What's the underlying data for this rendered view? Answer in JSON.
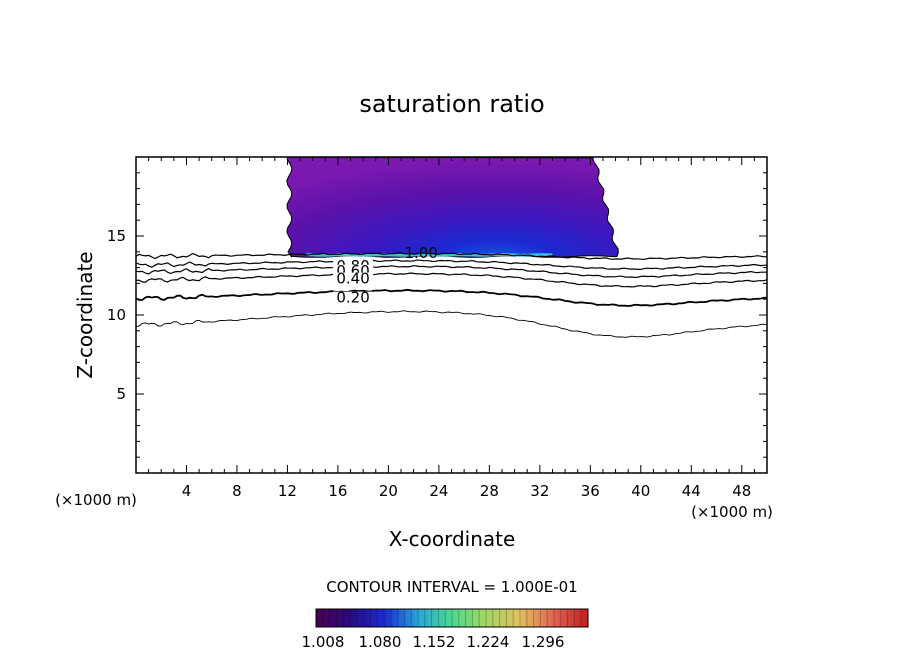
{
  "chart_data": {
    "type": "contour",
    "title": "saturation ratio",
    "xlabel": "X-coordinate",
    "ylabel": "Z-coordinate",
    "x_unit": "(×1000 m)",
    "x_unit_right": "(×1000 m)",
    "xlim": [
      0,
      50
    ],
    "ylim": [
      0,
      20
    ],
    "x_ticks": [
      4,
      8,
      12,
      16,
      20,
      24,
      28,
      32,
      36,
      40,
      44,
      48
    ],
    "y_ticks": [
      5,
      10,
      15
    ],
    "contour_interval_text": "CONTOUR INTERVAL = 1.000E-01",
    "contour_labels": [
      "1.00",
      "0.80",
      "0.60",
      "0.40",
      "0.20"
    ],
    "colorbar": {
      "tick_labels": [
        "1.008",
        "1.080",
        "1.152",
        "1.224",
        "1.296"
      ],
      "colors": [
        "#4b0050",
        "#2a0a7a",
        "#1a2ad0",
        "#2aa8d8",
        "#4cd890",
        "#a0d860",
        "#e0c060",
        "#e06050",
        "#c02020"
      ]
    },
    "shaded_region": {
      "x_range": [
        12,
        38
      ],
      "z_range": [
        13.7,
        20
      ],
      "min_value": 1.008,
      "max_value": 1.1,
      "colors": [
        "#7a18b0",
        "#5a10a8",
        "#3a18c8",
        "#1a3ae0",
        "#39c0e8"
      ]
    },
    "contours": [
      {
        "label": "1.00",
        "z_mean": 13.8
      },
      {
        "label": "0.80",
        "z_mean": 13.3
      },
      {
        "label": "0.60",
        "z_mean": 12.9
      },
      {
        "label": "0.40",
        "z_mean": 12.4
      },
      {
        "label": "0.20",
        "z_mean": 11.3
      },
      {
        "label": "",
        "z_mean": 9.8
      }
    ]
  }
}
